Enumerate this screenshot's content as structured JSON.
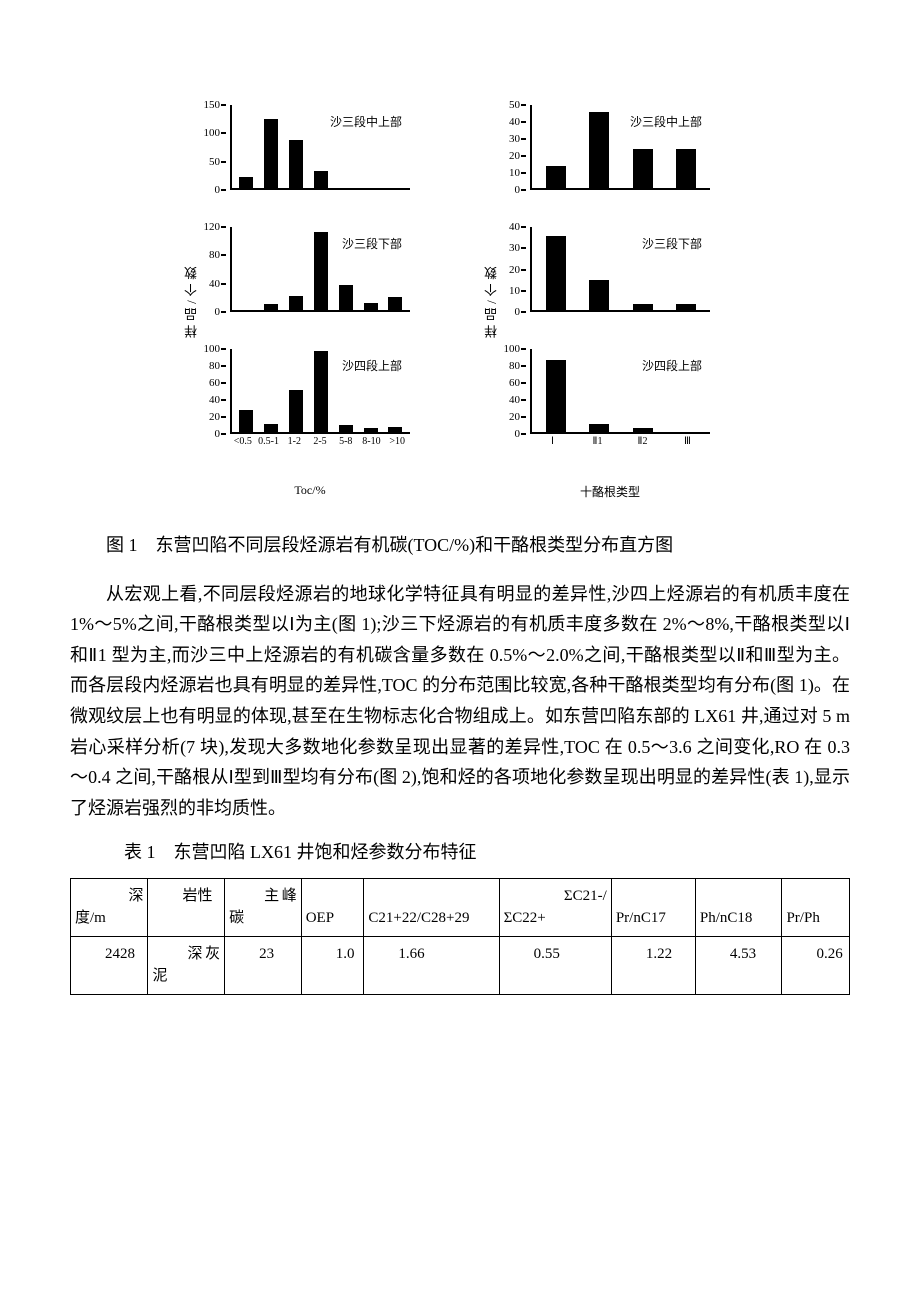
{
  "charts": {
    "left_column": {
      "y_axis_label": "样品/个数",
      "x_axis_label": "Toc/%",
      "x_categories": [
        "<0.5",
        "0.5-1",
        "1-2",
        "2-5",
        "5-8",
        "8-10",
        ">10"
      ],
      "panels": [
        {
          "title": "沙三段中上部",
          "ymax": 150,
          "yticks": [
            0,
            50,
            100,
            150
          ],
          "values": [
            20,
            122,
            85,
            30,
            0,
            0,
            0
          ],
          "bar_color": "#000000"
        },
        {
          "title": "沙三段下部",
          "ymax": 120,
          "yticks": [
            0,
            40,
            80,
            120
          ],
          "values": [
            0,
            8,
            20,
            110,
            35,
            10,
            18
          ],
          "bar_color": "#000000"
        },
        {
          "title": "沙四段上部",
          "ymax": 100,
          "yticks": [
            0,
            20,
            40,
            60,
            80,
            100
          ],
          "values": [
            26,
            10,
            50,
            95,
            8,
            5,
            6
          ],
          "bar_color": "#000000"
        }
      ]
    },
    "right_column": {
      "y_axis_label": "样品/个数",
      "x_axis_label": "十酪根类型",
      "x_categories": [
        "Ⅰ",
        "Ⅱ1",
        "Ⅱ2",
        "Ⅲ"
      ],
      "panels": [
        {
          "title": "沙三段中上部",
          "ymax": 50,
          "yticks": [
            0,
            10,
            20,
            30,
            40,
            50
          ],
          "values": [
            13,
            45,
            23,
            23
          ],
          "bar_color": "#000000"
        },
        {
          "title": "沙三段下部",
          "ymax": 40,
          "yticks": [
            0,
            10,
            20,
            30,
            40
          ],
          "values": [
            35,
            14,
            3,
            3
          ],
          "bar_color": "#000000"
        },
        {
          "title": "沙四段上部",
          "ymax": 100,
          "yticks": [
            0,
            20,
            40,
            60,
            80,
            100
          ],
          "values": [
            85,
            10,
            5,
            0
          ],
          "bar_color": "#000000"
        }
      ]
    }
  },
  "figure_caption": "图 1　东营凹陷不同层段烃源岩有机碳(TOC/%)和干酪根类型分布直方图",
  "body_paragraph": "从宏观上看,不同层段烃源岩的地球化学特征具有明显的差异性,沙四上烃源岩的有机质丰度在 1%～5%之间,干酪根类型以Ⅰ为主(图 1);沙三下烃源岩的有机质丰度多数在 2%～8%,干酪根类型以Ⅰ和Ⅱ1 型为主,而沙三中上烃源岩的有机碳含量多数在 0.5%～2.0%之间,干酪根类型以Ⅱ和Ⅲ型为主。而各层段内烃源岩也具有明显的差异性,TOC 的分布范围比较宽,各种干酪根类型均有分布(图 1)。在微观纹层上也有明显的体现,甚至在生物标志化合物组成上。如东营凹陷东部的 LX61 井,通过对 5 m 岩心采样分析(7 块),发现大多数地化参数呈现出显著的差异性,TOC 在 0.5～3.6 之间变化,RO 在 0.3～0.4 之间,干酪根从Ⅰ型到Ⅲ型均有分布(图 2),饱和烃的各项地化参数呈现出明显的差异性(表 1),显示了烃源岩强烈的非均质性。",
  "table": {
    "caption": "表 1　东营凹陷 LX61 井饱和烃参数分布特征",
    "columns": [
      "　　深度/m",
      "　　岩性",
      "　　主峰碳",
      "　　OEP",
      "　　C21+22/C28+29",
      "　　ΣC21-/ΣC22+",
      "　　Pr/nC17",
      "　　Ph/nC18",
      "　　Pr/Ph"
    ],
    "rows": [
      [
        "　　2428",
        "　　深灰泥",
        "　　23",
        "　　1.0",
        "　　1.66",
        "　　0.55",
        "　　1.22",
        "　　4.53",
        "　　0.26"
      ]
    ]
  }
}
